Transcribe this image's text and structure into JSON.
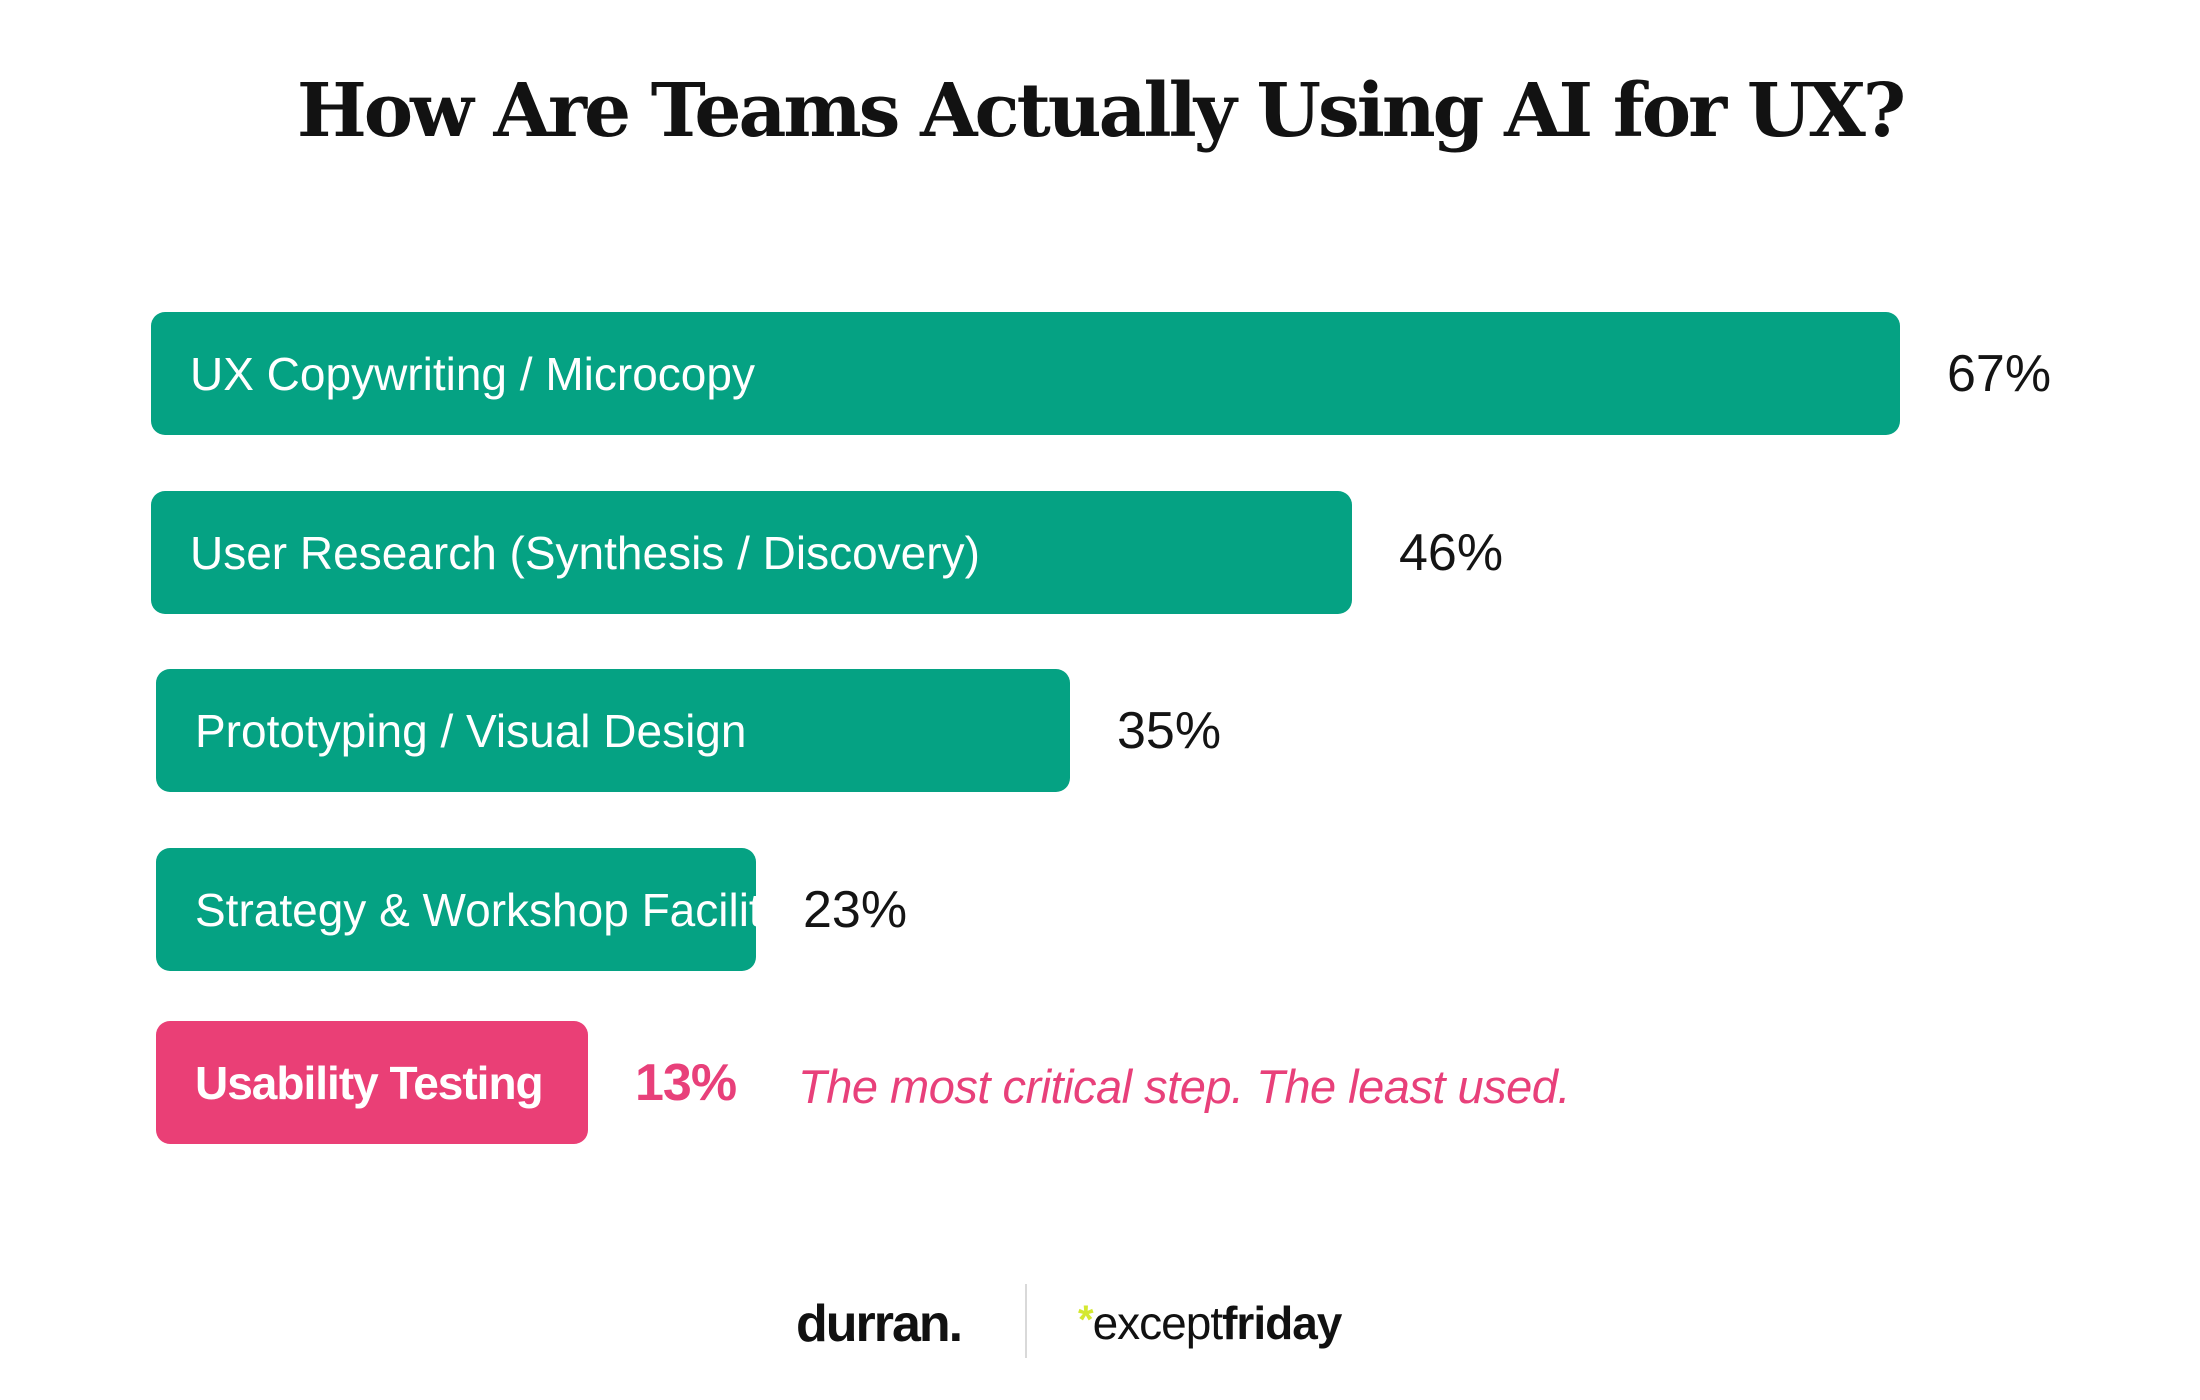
{
  "colors": {
    "bar_default": "#05a283",
    "bar_highlight": "#ea3f76",
    "text_highlight": "#e8407a",
    "logo_star": "#d4e831"
  },
  "chart_data": {
    "type": "bar",
    "orientation": "horizontal",
    "title": "How Are Teams Actually Using AI for UX?",
    "categories": [
      "UX Copywriting / Microcopy",
      "User Research (Synthesis / Discovery)",
      "Prototyping / Visual Design",
      "Strategy & Workshop Facilitation",
      "Usability Testing"
    ],
    "values": [
      67,
      46,
      35,
      23,
      13
    ],
    "value_labels": [
      "67%",
      "46%",
      "35%",
      "23%",
      "13%"
    ],
    "highlight_index": 4,
    "annotation": "The most critical step. The least used.",
    "unit": "%",
    "grid": false,
    "legend": "none"
  },
  "footer": {
    "logo_left": "durran.",
    "logo_right_star": "*",
    "logo_right_light": "except",
    "logo_right_bold": "friday"
  }
}
